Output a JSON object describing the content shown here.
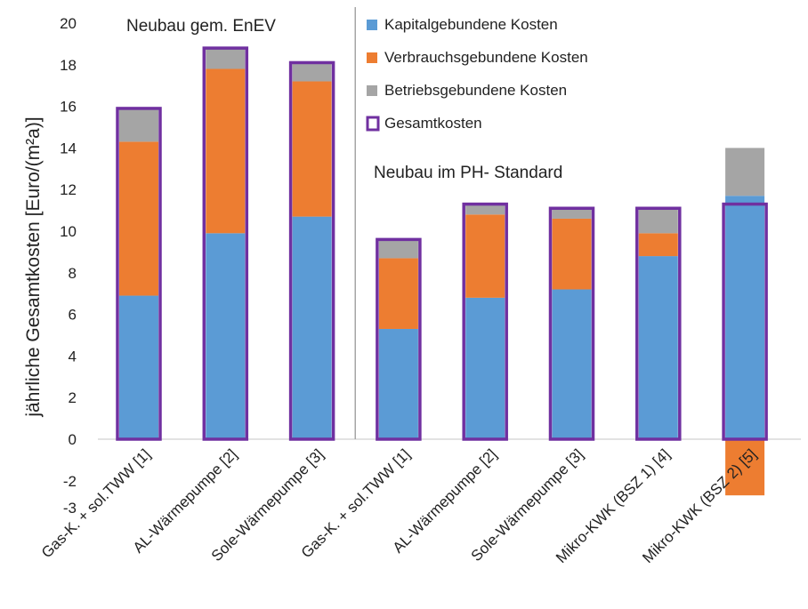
{
  "chart_data": {
    "type": "bar",
    "stacked": true,
    "ylabel": "jährliche Gesamtkosten [Euro/(m²a)]",
    "ylim": [
      -3,
      20
    ],
    "yticks": [
      -2,
      0,
      2,
      4,
      6,
      8,
      10,
      12,
      14,
      16,
      18,
      20
    ],
    "first_tick_label": "-3",
    "grid": false,
    "legend_position": "top-right",
    "categories": [
      "Gas-K. + sol.TWW [1]",
      "AL-Wärmepumpe [2]",
      "Sole-Wärmepumpe [3]",
      "Gas-K. + sol.TWW [1]",
      "AL-Wärmepumpe [2]",
      "Sole-Wärmepumpe [3]",
      "Mikro-KWK (BSZ 1) [4]",
      "Mikro-KWK (BSZ 2) [5]"
    ],
    "groups": [
      {
        "label": "Neubau gem. EnEV",
        "categories": [
          0,
          1,
          2
        ]
      },
      {
        "label": "Neubau im PH- Standard",
        "categories": [
          3,
          4,
          5,
          6,
          7
        ]
      }
    ],
    "series": [
      {
        "name": "Kapitalgebundene Kosten",
        "color": "#5b9bd5",
        "values": [
          6.9,
          9.9,
          10.7,
          5.3,
          6.8,
          7.2,
          8.8,
          11.7
        ]
      },
      {
        "name": "Verbrauchsgebundene Kosten",
        "color": "#ed7d31",
        "values": [
          7.4,
          7.9,
          6.5,
          3.4,
          4.0,
          3.4,
          1.1,
          -2.7
        ]
      },
      {
        "name": "Betriebsgebundene Kosten",
        "color": "#a5a5a5",
        "values": [
          1.6,
          1.0,
          0.9,
          0.9,
          0.5,
          0.5,
          1.2,
          2.3
        ]
      }
    ],
    "total": {
      "name": "Gesamtkosten",
      "color": "#7030a0",
      "values": [
        15.9,
        18.8,
        18.1,
        9.6,
        11.3,
        11.1,
        11.1,
        11.3
      ]
    }
  }
}
